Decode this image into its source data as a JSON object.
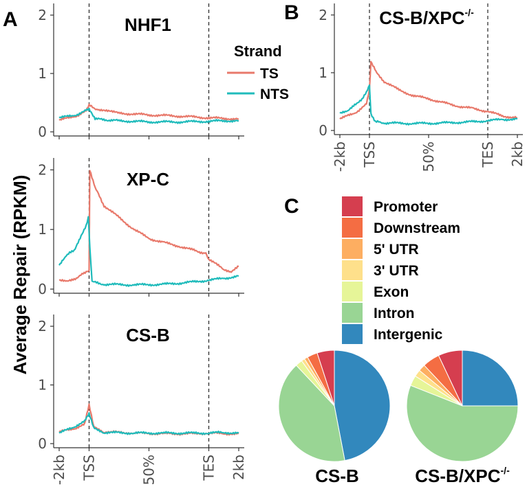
{
  "panels": {
    "A": "A",
    "B": "B",
    "C": "C"
  },
  "y_axis_label": "Average Repair (RPKM)",
  "legend": {
    "title": "Strand",
    "entries": [
      {
        "label": "TS",
        "color": "#E8796B"
      },
      {
        "label": "NTS",
        "color": "#1FBBBB"
      }
    ]
  },
  "chart_data": [
    {
      "id": "nhf1",
      "type": "line",
      "title": "NHF1",
      "ylim": [
        0,
        2.2
      ],
      "yticks": [
        "0",
        "1",
        "2"
      ],
      "xticks": [
        "-2kb",
        "TSS",
        "50%",
        "TES",
        "2kb"
      ],
      "x_positions": [
        0,
        2,
        6,
        10,
        12
      ],
      "series": [
        {
          "name": "TS",
          "points": [
            [
              0,
              0.2
            ],
            [
              1,
              0.26
            ],
            [
              1.8,
              0.35
            ],
            [
              2,
              0.45
            ],
            [
              2.6,
              0.38
            ],
            [
              4,
              0.32
            ],
            [
              6,
              0.29
            ],
            [
              8,
              0.27
            ],
            [
              10,
              0.24
            ],
            [
              11,
              0.23
            ],
            [
              12,
              0.22
            ]
          ]
        },
        {
          "name": "NTS",
          "points": [
            [
              0,
              0.24
            ],
            [
              1,
              0.28
            ],
            [
              1.8,
              0.36
            ],
            [
              2,
              0.38
            ],
            [
              2.4,
              0.22
            ],
            [
              4,
              0.19
            ],
            [
              6,
              0.17
            ],
            [
              8,
              0.17
            ],
            [
              10,
              0.18
            ],
            [
              11,
              0.19
            ],
            [
              12,
              0.19
            ]
          ]
        }
      ]
    },
    {
      "id": "xpc",
      "type": "line",
      "title": "XP-C",
      "ylim": [
        0,
        2.2
      ],
      "yticks": [
        "0",
        "1",
        "2"
      ],
      "xticks": [
        "-2kb",
        "TSS",
        "50%",
        "TES",
        "2kb"
      ],
      "x_positions": [
        0,
        2,
        6,
        10,
        12
      ],
      "series": [
        {
          "name": "TS",
          "points": [
            [
              0,
              0.15
            ],
            [
              0.5,
              0.12
            ],
            [
              1,
              0.17
            ],
            [
              1.6,
              0.25
            ],
            [
              2,
              0.3
            ],
            [
              2.05,
              2.0
            ],
            [
              2.4,
              1.7
            ],
            [
              3,
              1.4
            ],
            [
              4,
              1.2
            ],
            [
              5,
              1.0
            ],
            [
              6,
              0.85
            ],
            [
              7,
              0.78
            ],
            [
              8,
              0.72
            ],
            [
              9,
              0.65
            ],
            [
              9.8,
              0.6
            ],
            [
              10,
              0.5
            ],
            [
              11,
              0.33
            ],
            [
              11.5,
              0.3
            ],
            [
              12,
              0.38
            ]
          ]
        },
        {
          "name": "NTS",
          "points": [
            [
              0,
              0.4
            ],
            [
              0.4,
              0.55
            ],
            [
              1,
              0.65
            ],
            [
              1.4,
              0.85
            ],
            [
              1.8,
              1.05
            ],
            [
              1.95,
              1.2
            ],
            [
              2.05,
              0.7
            ],
            [
              2.2,
              0.12
            ],
            [
              3,
              0.08
            ],
            [
              5,
              0.07
            ],
            [
              7,
              0.08
            ],
            [
              9,
              0.12
            ],
            [
              10,
              0.15
            ],
            [
              11,
              0.18
            ],
            [
              12,
              0.22
            ]
          ]
        }
      ]
    },
    {
      "id": "csb",
      "type": "line",
      "title": "CS-B",
      "ylim": [
        0,
        2.2
      ],
      "yticks": [
        "0",
        "1",
        "2"
      ],
      "xticks": [
        "-2kb",
        "TSS",
        "50%",
        "TES",
        "2kb"
      ],
      "x_positions": [
        0,
        2,
        6,
        10,
        12
      ],
      "series": [
        {
          "name": "TS",
          "points": [
            [
              0,
              0.2
            ],
            [
              1,
              0.25
            ],
            [
              1.7,
              0.35
            ],
            [
              2,
              0.65
            ],
            [
              2.3,
              0.3
            ],
            [
              3,
              0.2
            ],
            [
              5,
              0.18
            ],
            [
              7,
              0.17
            ],
            [
              9,
              0.17
            ],
            [
              10,
              0.18
            ],
            [
              11,
              0.17
            ],
            [
              12,
              0.17
            ]
          ]
        },
        {
          "name": "NTS",
          "points": [
            [
              0,
              0.18
            ],
            [
              1,
              0.28
            ],
            [
              1.7,
              0.4
            ],
            [
              2,
              0.5
            ],
            [
              2.3,
              0.28
            ],
            [
              3,
              0.19
            ],
            [
              5,
              0.18
            ],
            [
              7,
              0.18
            ],
            [
              9,
              0.18
            ],
            [
              10,
              0.18
            ],
            [
              11,
              0.19
            ],
            [
              12,
              0.18
            ]
          ]
        }
      ]
    },
    {
      "id": "csbxpc",
      "type": "line",
      "title": "CS-B/XPC",
      "title_sup": "-/-",
      "ylim": [
        0,
        2.2
      ],
      "yticks": [
        "0",
        "1",
        "2"
      ],
      "xticks": [
        "-2kb",
        "TSS",
        "50%",
        "TES",
        "2kb"
      ],
      "x_positions": [
        0,
        2,
        6,
        10,
        12
      ],
      "series": [
        {
          "name": "TS",
          "points": [
            [
              0,
              0.2
            ],
            [
              1,
              0.3
            ],
            [
              1.8,
              0.45
            ],
            [
              2,
              0.7
            ],
            [
              2.1,
              1.2
            ],
            [
              2.5,
              1.0
            ],
            [
              3,
              0.85
            ],
            [
              4,
              0.7
            ],
            [
              5,
              0.6
            ],
            [
              6,
              0.55
            ],
            [
              7,
              0.48
            ],
            [
              8,
              0.42
            ],
            [
              9,
              0.38
            ],
            [
              10,
              0.33
            ],
            [
              11,
              0.25
            ],
            [
              12,
              0.22
            ]
          ]
        },
        {
          "name": "NTS",
          "points": [
            [
              0,
              0.3
            ],
            [
              0.5,
              0.32
            ],
            [
              1,
              0.45
            ],
            [
              1.5,
              0.55
            ],
            [
              1.8,
              0.65
            ],
            [
              2,
              0.78
            ],
            [
              2.1,
              0.3
            ],
            [
              2.4,
              0.15
            ],
            [
              3,
              0.13
            ],
            [
              5,
              0.12
            ],
            [
              7,
              0.13
            ],
            [
              9,
              0.15
            ],
            [
              10,
              0.17
            ],
            [
              11,
              0.19
            ],
            [
              12,
              0.2
            ]
          ]
        }
      ]
    },
    {
      "id": "pies",
      "type": "pie",
      "categories": [
        {
          "label": "Promoter",
          "color": "#D53E4F"
        },
        {
          "label": "Downstream",
          "color": "#F46D43"
        },
        {
          "label": "5' UTR",
          "color": "#FDAE61"
        },
        {
          "label": "3' UTR",
          "color": "#FEE08B"
        },
        {
          "label": "Exon",
          "color": "#E6F598"
        },
        {
          "label": "Intron",
          "color": "#99D594"
        },
        {
          "label": "Intergenic",
          "color": "#3288BD"
        }
      ],
      "pies": [
        {
          "name": "CS-B",
          "sup": "",
          "values": [
            5,
            3,
            1,
            1,
            2,
            41,
            47
          ]
        },
        {
          "name": "CS-B/XPC",
          "sup": "-/-",
          "values": [
            7,
            5,
            2,
            2,
            3,
            56,
            25
          ]
        }
      ]
    }
  ]
}
